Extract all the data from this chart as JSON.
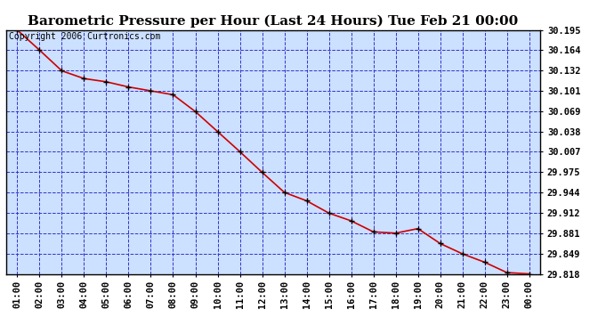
{
  "title": "Barometric Pressure per Hour (Last 24 Hours) Tue Feb 21 00:00",
  "copyright_text": "Copyright 2006 Curtronics.com",
  "x_labels": [
    "01:00",
    "02:00",
    "03:00",
    "04:00",
    "05:00",
    "06:00",
    "07:00",
    "08:00",
    "09:00",
    "10:00",
    "11:00",
    "12:00",
    "13:00",
    "14:00",
    "15:00",
    "16:00",
    "17:00",
    "18:00",
    "19:00",
    "20:00",
    "21:00",
    "22:00",
    "23:00",
    "00:00"
  ],
  "x_values": [
    1,
    2,
    3,
    4,
    5,
    6,
    7,
    8,
    9,
    10,
    11,
    12,
    13,
    14,
    15,
    16,
    17,
    18,
    19,
    20,
    21,
    22,
    23,
    24
  ],
  "y_values": [
    30.195,
    30.164,
    30.132,
    30.12,
    30.115,
    30.107,
    30.101,
    30.095,
    30.069,
    30.038,
    30.007,
    29.975,
    29.944,
    29.931,
    29.912,
    29.9,
    29.883,
    29.881,
    29.888,
    29.865,
    29.849,
    29.836,
    29.82,
    29.818
  ],
  "ytick_labels": [
    "30.195",
    "30.164",
    "30.132",
    "30.101",
    "30.069",
    "30.038",
    "30.007",
    "29.975",
    "29.944",
    "29.912",
    "29.881",
    "29.849",
    "29.818"
  ],
  "ytick_values": [
    30.195,
    30.164,
    30.132,
    30.101,
    30.069,
    30.038,
    30.007,
    29.975,
    29.944,
    29.912,
    29.881,
    29.849,
    29.818
  ],
  "ylim_min": 29.818,
  "ylim_max": 30.195,
  "line_color": "#cc0000",
  "marker_color": "#000000",
  "grid_color": "#3333cc",
  "bg_color": "#ffffff",
  "plot_bg_color": "#cce0ff",
  "title_fontsize": 11,
  "copyright_fontsize": 7,
  "tick_fontsize": 7.5
}
